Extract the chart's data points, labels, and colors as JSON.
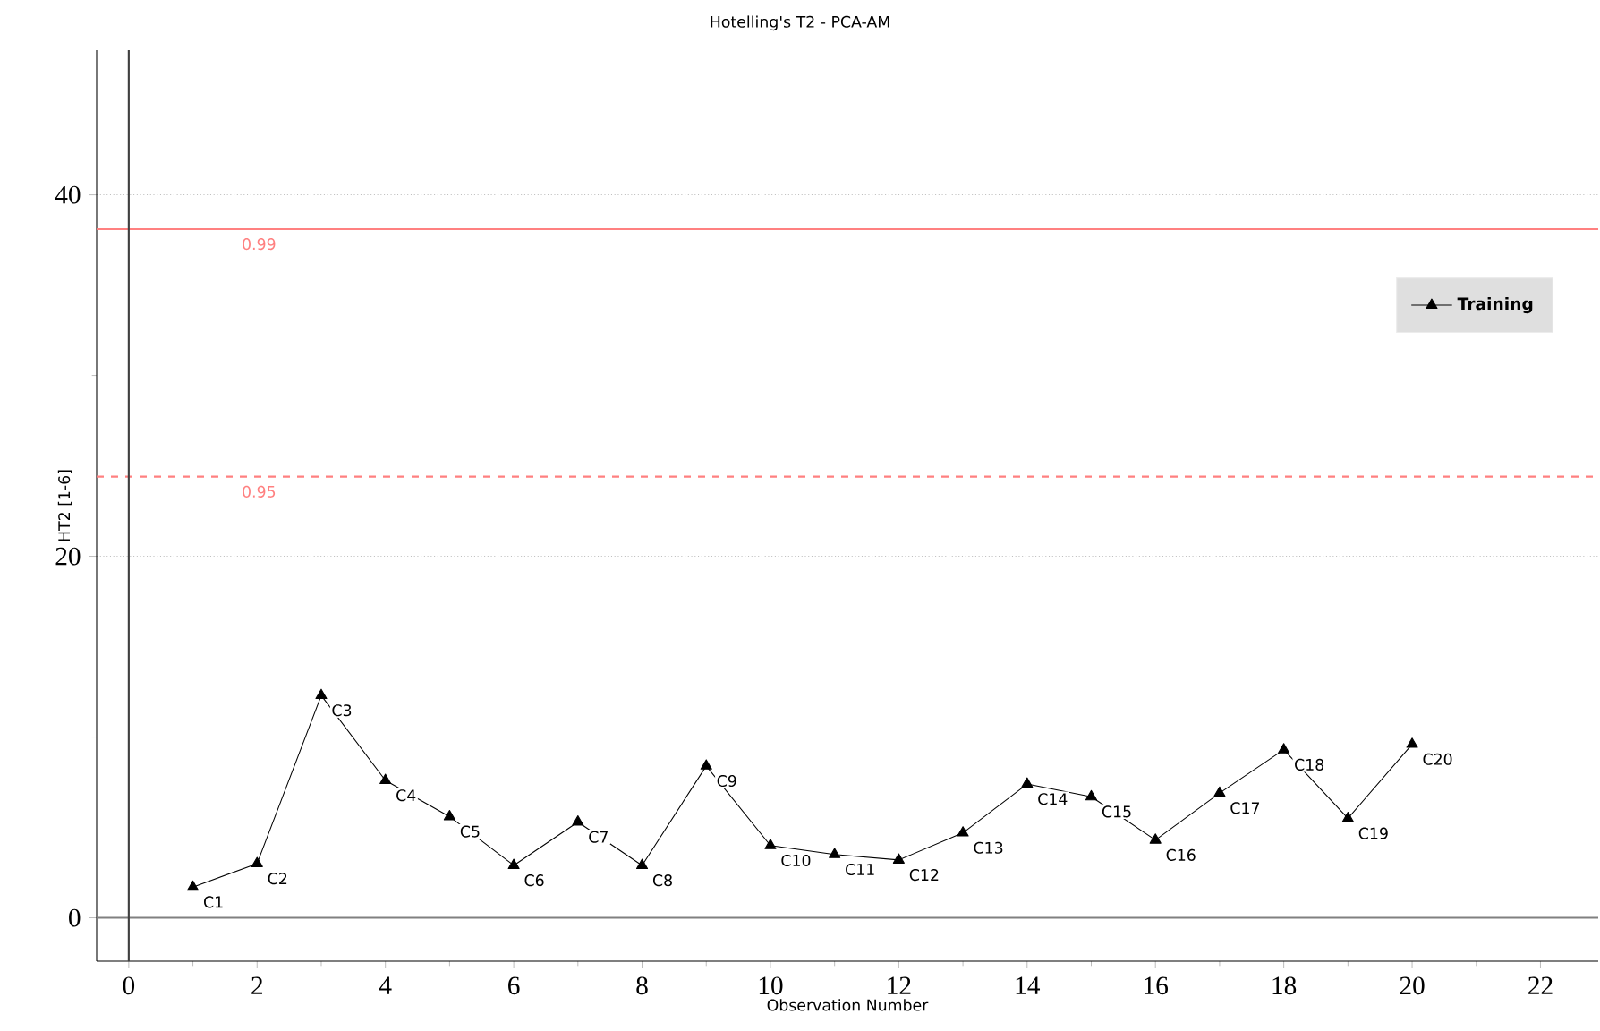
{
  "chart_data": {
    "type": "line",
    "title": "Hotelling's T2 - PCA-AM",
    "xlabel": "Observation Number",
    "ylabel": "HT2 [1-6]",
    "x": [
      1,
      2,
      3,
      4,
      5,
      6,
      7,
      8,
      9,
      10,
      11,
      12,
      13,
      14,
      15,
      16,
      17,
      18,
      19,
      20
    ],
    "series": [
      {
        "name": "Training",
        "color": "#000000",
        "values": [
          1.7,
          3.0,
          12.3,
          7.6,
          5.6,
          2.9,
          5.3,
          2.9,
          8.4,
          4.0,
          3.5,
          3.2,
          4.7,
          7.4,
          6.7,
          4.3,
          6.9,
          9.3,
          5.5,
          9.6
        ]
      }
    ],
    "marker": "triangle",
    "line_style": "solid",
    "legend": "right",
    "grid": "y",
    "xlim": [
      -0.5,
      22.9
    ],
    "ylim": [
      -2.4,
      48
    ],
    "xticks": [
      0,
      {
        "value": 1,
        "label": null
      },
      2,
      {
        "value": 3,
        "label": null
      },
      4,
      {
        "value": 5,
        "label": null
      },
      6,
      {
        "value": 7,
        "label": null
      },
      8,
      {
        "value": 9,
        "label": null
      },
      10,
      {
        "value": 11,
        "label": null
      },
      12,
      {
        "value": 13,
        "label": null
      },
      14,
      {
        "value": 15,
        "label": null
      },
      16,
      {
        "value": 17,
        "label": null
      },
      18,
      {
        "value": 19,
        "label": null
      },
      20,
      {
        "value": 21,
        "label": null
      },
      22
    ],
    "yticks": [
      0,
      {
        "value": 10,
        "label": null
      },
      20,
      {
        "value": 30,
        "label": null
      },
      40
    ],
    "ref_lines": [
      {
        "axis": "y",
        "value": 38.1,
        "color": "#ff8080",
        "line_style": "solid"
      },
      {
        "axis": "y",
        "value": 24.4,
        "color": "#ff8080",
        "line_style": "dashed"
      },
      {
        "axis": "y",
        "value": 0,
        "color": "#808080",
        "line_style": "solid"
      },
      {
        "axis": "x",
        "value": 0,
        "color": "#404040",
        "line_style": "solid"
      }
    ],
    "annotations": [
      {
        "text": "0.99",
        "x": 1.6,
        "y": 38.1
      },
      {
        "text": "0.95",
        "x": 1.6,
        "y": 24.4
      },
      {
        "text": "C1",
        "x": 1,
        "y": 1.7
      },
      {
        "text": "C2",
        "x": 2,
        "y": 3.0
      },
      {
        "text": "C3",
        "x": 3,
        "y": 12.3
      },
      {
        "text": "C4",
        "x": 4,
        "y": 7.6
      },
      {
        "text": "C5",
        "x": 5,
        "y": 5.6
      },
      {
        "text": "C6",
        "x": 6,
        "y": 2.9
      },
      {
        "text": "C7",
        "x": 7,
        "y": 5.3
      },
      {
        "text": "C8",
        "x": 8,
        "y": 2.9
      },
      {
        "text": "C9",
        "x": 9,
        "y": 8.4
      },
      {
        "text": "C10",
        "x": 10,
        "y": 4.0
      },
      {
        "text": "C11",
        "x": 11,
        "y": 3.5
      },
      {
        "text": "C12",
        "x": 12,
        "y": 3.2
      },
      {
        "text": "C13",
        "x": 13,
        "y": 4.7
      },
      {
        "text": "C14",
        "x": 14,
        "y": 7.4
      },
      {
        "text": "C15",
        "x": 15,
        "y": 6.7
      },
      {
        "text": "C16",
        "x": 16,
        "y": 4.3
      },
      {
        "text": "C17",
        "x": 17,
        "y": 6.9
      },
      {
        "text": "C18",
        "x": 18,
        "y": 9.3
      },
      {
        "text": "C19",
        "x": 19,
        "y": 5.5
      },
      {
        "text": "C20",
        "x": 20,
        "y": 9.6
      }
    ]
  }
}
